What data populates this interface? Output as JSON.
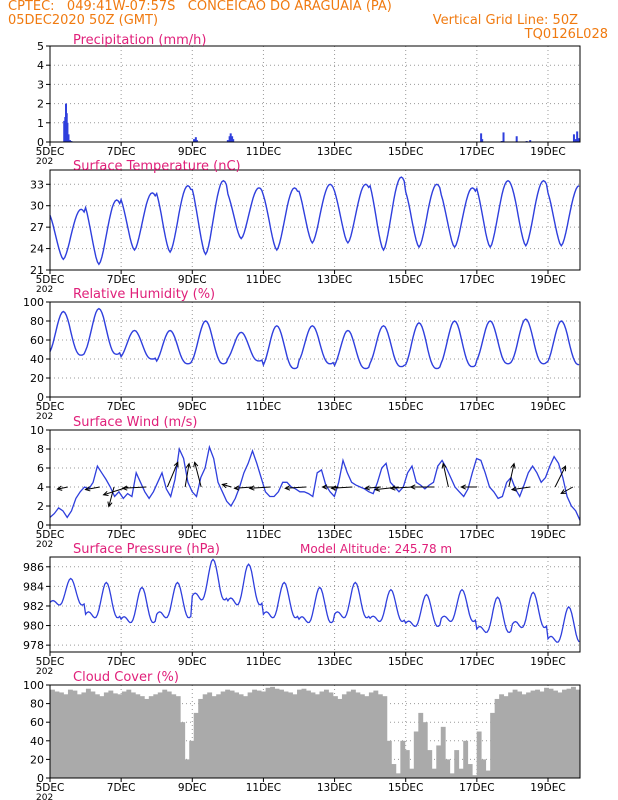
{
  "header": {
    "line1_left": "CPTEC:   049:41W-07:57S   CONCEICAO DO ARAGUAIA (PA)",
    "line2_left": "05DEC2020 50Z (GMT)",
    "line2_right": "Vertical Grid Line: 50Z",
    "line3_right": "TQ0126L028",
    "text_color": "#f07a10"
  },
  "colors": {
    "title": "#e0207a",
    "line": "#2f3fdd",
    "cloud": "#aaaaaa",
    "axis": "#000000",
    "grid": "#9a9a9a"
  },
  "x_tick_labels": [
    "5DEC",
    "7DEC",
    "9DEC",
    "11DEC",
    "13DEC",
    "15DEC",
    "17DEC",
    "19DEC"
  ],
  "x_tick_days": [
    0,
    2,
    4,
    6,
    8,
    10,
    12,
    14
  ],
  "x_range_days": [
    0,
    14.9
  ],
  "x_left_stub": "202",
  "chart_data": [
    {
      "type": "bar",
      "title": "Precipitation (mm/h)",
      "ylim": [
        0,
        5
      ],
      "yticks": [
        0,
        1,
        2,
        3,
        4,
        5
      ],
      "bars": [
        [
          0.4,
          1.1
        ],
        [
          0.43,
          1.3
        ],
        [
          0.45,
          2.0
        ],
        [
          0.47,
          1.5
        ],
        [
          0.49,
          1.0
        ],
        [
          0.52,
          0.4
        ],
        [
          0.56,
          0.1
        ],
        [
          0.6,
          0.05
        ],
        [
          4.05,
          0.15
        ],
        [
          4.1,
          0.25
        ],
        [
          4.13,
          0.1
        ],
        [
          5.0,
          0.1
        ],
        [
          5.05,
          0.3
        ],
        [
          5.08,
          0.45
        ],
        [
          5.12,
          0.3
        ],
        [
          5.15,
          0.15
        ],
        [
          12.12,
          0.45
        ],
        [
          12.15,
          0.15
        ],
        [
          12.7,
          0.05
        ],
        [
          12.75,
          0.5
        ],
        [
          13.12,
          0.3
        ],
        [
          13.4,
          0.05
        ],
        [
          13.5,
          0.1
        ],
        [
          14.73,
          0.4
        ],
        [
          14.78,
          0.15
        ],
        [
          14.82,
          0.55
        ],
        [
          14.86,
          0.2
        ]
      ]
    },
    {
      "type": "line",
      "title": "Surface Temperature (nC)",
      "ylim": [
        21,
        35
      ],
      "yticks": [
        21,
        24,
        27,
        30,
        33
      ],
      "daily_min": [
        22.5,
        21.8,
        23.8,
        23.5,
        23.2,
        25.4,
        23.8,
        24.8,
        24.8,
        23.8,
        24.2,
        24.2,
        24.2,
        24.4,
        24.4
      ],
      "daily_max": [
        29.5,
        30.8,
        31.8,
        32.8,
        33.5,
        32.5,
        32.5,
        33.0,
        33.0,
        34.0,
        33.0,
        32.5,
        33.5,
        33.5,
        32.8
      ]
    },
    {
      "type": "line",
      "title": "Relative Humidity (%)",
      "ylim": [
        0,
        100
      ],
      "yticks": [
        0,
        20,
        40,
        60,
        80,
        100
      ],
      "daily_min": [
        44,
        45,
        40,
        35,
        35,
        38,
        30,
        35,
        30,
        32,
        30,
        32,
        35,
        35,
        34
      ],
      "daily_max": [
        90,
        93,
        70,
        70,
        80,
        68,
        75,
        75,
        70,
        75,
        78,
        80,
        80,
        82,
        80
      ]
    },
    {
      "type": "line",
      "title": "Surface Wind (m/s)",
      "ylim": [
        0,
        10
      ],
      "yticks": [
        0,
        2,
        4,
        6,
        8,
        10
      ],
      "speed": [
        0.8,
        1.2,
        1.8,
        1.5,
        0.8,
        1.5,
        2.8,
        3.5,
        4.0,
        3.8,
        4.5,
        6.2,
        5.5,
        4.8,
        4.0,
        3.0,
        3.5,
        2.8,
        3.3,
        3.0,
        5.5,
        4.5,
        3.5,
        2.8,
        3.5,
        4.5,
        5.5,
        3.8,
        3.0,
        4.8,
        8.0,
        7.0,
        4.5,
        3.5,
        3.0,
        5.0,
        6.0,
        8.2,
        7.0,
        4.5,
        3.5,
        2.5,
        2.0,
        2.8,
        4.0,
        5.5,
        6.5,
        7.8,
        6.5,
        5.0,
        3.5,
        3.0,
        3.0,
        3.5,
        4.5,
        4.5,
        4.0,
        3.8,
        3.5,
        3.5,
        3.3,
        3.0,
        5.5,
        5.8,
        4.2,
        3.5,
        3.0,
        4.5,
        6.8,
        5.5,
        4.5,
        4.2,
        4.0,
        3.8,
        3.5,
        3.3,
        4.5,
        6.0,
        6.5,
        4.5,
        4.0,
        3.5,
        4.0,
        5.5,
        6.2,
        4.5,
        4.2,
        3.8,
        4.2,
        4.5,
        6.2,
        6.8,
        6.0,
        5.0,
        4.0,
        3.5,
        3.0,
        3.8,
        5.5,
        7.0,
        6.8,
        5.5,
        4.0,
        3.5,
        2.8,
        3.0,
        4.5,
        5.0,
        3.8,
        3.0,
        4.2,
        5.5,
        6.2,
        5.5,
        4.5,
        5.0,
        6.2,
        7.2,
        6.5,
        5.0,
        3.0,
        2.0,
        1.5,
        0.5
      ],
      "arrows": [
        [
          0.5,
          -0.4,
          0.08
        ],
        [
          1.4,
          -0.55,
          0.1
        ],
        [
          1.8,
          -0.2,
          0.75
        ],
        [
          2.2,
          -0.95,
          0.3
        ],
        [
          2.7,
          -0.9,
          0.05
        ],
        [
          3.3,
          0.4,
          -0.95
        ],
        [
          3.8,
          0.15,
          -0.9
        ],
        [
          4.25,
          -0.25,
          -0.95
        ],
        [
          5.1,
          -0.35,
          -0.1
        ],
        [
          5.7,
          -0.7,
          0.05
        ],
        [
          6.2,
          -0.8,
          0.05
        ],
        [
          7.2,
          -0.8,
          0.05
        ],
        [
          8.1,
          -0.6,
          0.0
        ],
        [
          8.5,
          -0.8,
          0.05
        ],
        [
          9.3,
          -0.6,
          0.05
        ],
        [
          9.8,
          -0.9,
          0.1
        ],
        [
          10.2,
          -0.85,
          0.05
        ],
        [
          10.8,
          -0.9,
          0.0
        ],
        [
          11.2,
          -0.2,
          -0.9
        ],
        [
          12.0,
          -0.6,
          0.0
        ],
        [
          12.9,
          0.2,
          -0.9
        ],
        [
          13.5,
          -0.7,
          0.1
        ],
        [
          14.2,
          0.4,
          -0.8
        ],
        [
          14.7,
          -0.45,
          0.25
        ]
      ]
    },
    {
      "type": "line",
      "title": "Surface Pressure (hPa)",
      "annotation": "Model Altitude: 245.78 m",
      "ylim": [
        977.3,
        987
      ],
      "yticks": [
        978,
        980,
        982,
        984,
        986
      ],
      "daily_mean": [
        983.0,
        982.0,
        981.5,
        982.0,
        984.0,
        983.5,
        982.0,
        981.5,
        982.0,
        981.5,
        981.0,
        981.5,
        980.5,
        981.0,
        979.5
      ],
      "daily_amp": [
        1.5,
        2.0,
        2.0,
        2.0,
        2.3,
        2.3,
        2.0,
        2.0,
        2.0,
        1.8,
        1.8,
        1.8,
        2.0,
        2.0,
        2.0
      ]
    },
    {
      "type": "area",
      "title": "Cloud Cover (%)",
      "ylim": [
        0,
        100
      ],
      "yticks": [
        0,
        20,
        40,
        60,
        80,
        100
      ],
      "values": [
        95,
        93,
        92,
        90,
        95,
        94,
        90,
        92,
        96,
        93,
        90,
        88,
        92,
        94,
        91,
        90,
        93,
        95,
        92,
        90,
        88,
        85,
        88,
        90,
        92,
        95,
        93,
        90,
        88,
        60,
        20,
        40,
        70,
        85,
        90,
        92,
        88,
        90,
        93,
        95,
        94,
        92,
        90,
        88,
        92,
        95,
        94,
        93,
        97,
        98,
        96,
        95,
        93,
        92,
        90,
        95,
        96,
        94,
        92,
        90,
        93,
        95,
        92,
        88,
        85,
        90,
        93,
        95,
        92,
        90,
        88,
        92,
        94,
        90,
        88,
        40,
        15,
        5,
        40,
        30,
        10,
        50,
        70,
        60,
        30,
        10,
        35,
        55,
        20,
        5,
        30,
        10,
        40,
        15,
        3,
        50,
        20,
        8,
        70,
        85,
        90,
        88,
        92,
        95,
        93,
        90,
        92,
        94,
        95,
        93,
        97,
        96,
        94,
        92,
        95,
        96,
        98,
        95
      ]
    }
  ]
}
